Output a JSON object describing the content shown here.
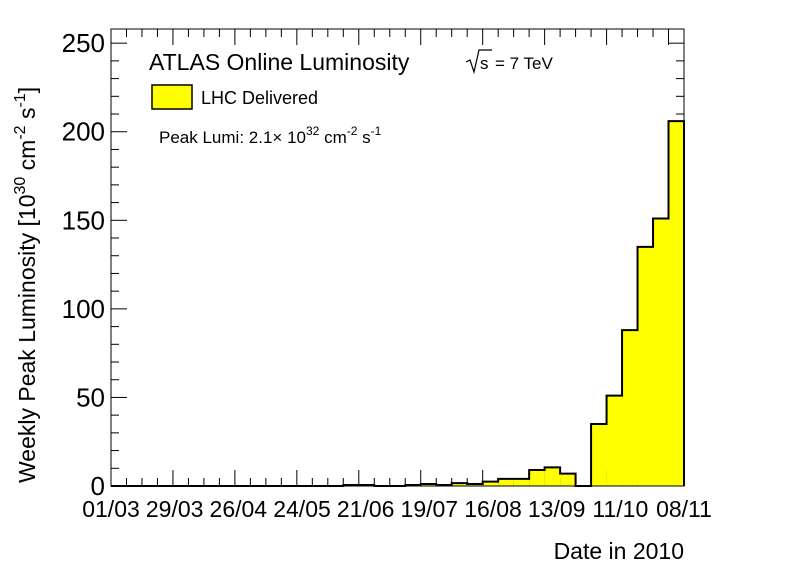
{
  "chart_data": {
    "type": "bar",
    "title": "ATLAS Online Luminosity",
    "energy_label": "s",
    "energy_value": "= 7 TeV",
    "xlabel": "Date in 2010",
    "ylabel_main": "Weekly Peak Luminosity [10",
    "ylabel_exp1": "30",
    "ylabel_mid": " cm",
    "ylabel_exp2": "-2",
    "ylabel_mid2": " s",
    "ylabel_exp3": "-1",
    "ylabel_end": "]",
    "legend": {
      "label": "LHC Delivered",
      "color": "#ffff00",
      "position": "top-left"
    },
    "annotation": {
      "prefix": "Peak Lumi: 2.1",
      "times": "×",
      "base": " 10",
      "exp1": "32",
      "unit1": " cm",
      "exp2": "-2",
      "unit2": " s",
      "exp3": "-1"
    },
    "x_tick_labels": [
      "01/03",
      "29/03",
      "26/04",
      "24/05",
      "21/06",
      "19/07",
      "16/08",
      "13/09",
      "11/10",
      "08/11"
    ],
    "y_ticks": [
      0,
      50,
      100,
      150,
      200,
      250
    ],
    "ylim": [
      0,
      258
    ],
    "weeks": 36,
    "values": [
      0,
      0,
      0,
      0,
      0,
      0,
      0,
      0,
      0,
      0,
      0,
      0,
      0,
      0,
      0,
      0.6,
      0.6,
      0,
      0,
      0.6,
      1.1,
      0.6,
      1.6,
      1.1,
      2.5,
      4.0,
      4.0,
      9.0,
      10.5,
      7.0,
      0,
      35,
      51,
      88,
      135,
      151,
      206
    ],
    "bar_color": "#ffff00",
    "grid": false
  }
}
